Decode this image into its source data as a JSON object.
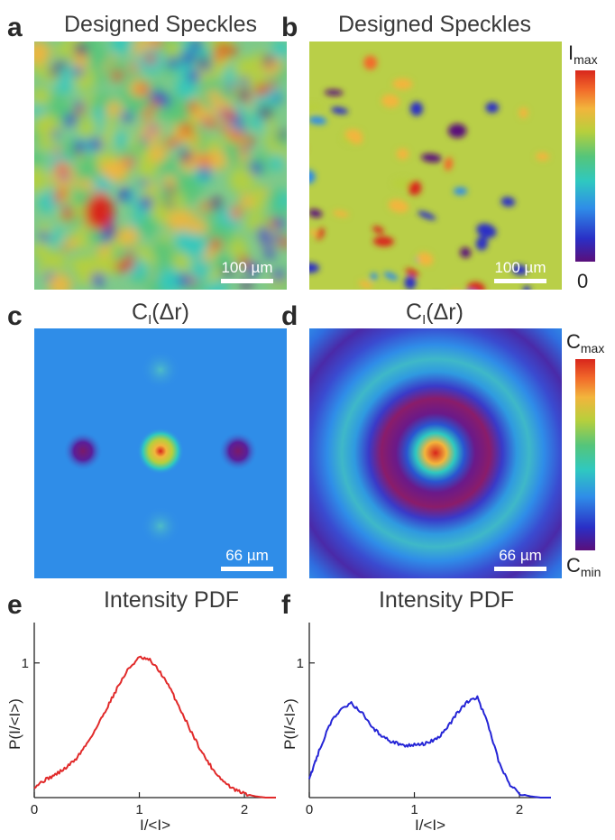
{
  "colors": {
    "jet": [
      "#5a0f7a",
      "#2a2fc6",
      "#2f8de8",
      "#2fc8c0",
      "#55c57a",
      "#b7cf3c",
      "#f2b53c",
      "#f26a2a",
      "#d8261c"
    ],
    "line_red": "#e12a2a",
    "line_blue": "#2525d6"
  },
  "panels": {
    "a": {
      "letter": "a",
      "title": "Designed Speckles",
      "scalebar": "100 µm"
    },
    "b": {
      "letter": "b",
      "title": "Designed Speckles",
      "scalebar": "100 µm"
    },
    "c": {
      "letter": "c",
      "title_main": "C",
      "title_sub": "I",
      "title_rest": "(Δr)",
      "scalebar": "66 µm"
    },
    "d": {
      "letter": "d",
      "title_main": "C",
      "title_sub": "I",
      "title_rest": "(Δr)",
      "scalebar": "66 µm"
    },
    "e": {
      "letter": "e",
      "title": "Intensity PDF"
    },
    "f": {
      "letter": "f",
      "title": "Intensity PDF"
    }
  },
  "colorbar_top": {
    "max_main": "I",
    "max_sub": "max",
    "min": "0"
  },
  "colorbar_mid": {
    "max_main": "C",
    "max_sub": "max",
    "min_main": "C",
    "min_sub": "min"
  },
  "chart_data": [
    {
      "panel": "e",
      "type": "line",
      "title": "Intensity PDF",
      "xlabel": "I/<I>",
      "ylabel": "P(I/<I>)",
      "xticks": [
        0,
        1,
        2
      ],
      "yticks": [
        1
      ],
      "xlim": [
        0,
        2.3
      ],
      "ylim": [
        0,
        1.3
      ],
      "series": [
        {
          "color": "red",
          "x": [
            0,
            0.1,
            0.2,
            0.3,
            0.4,
            0.5,
            0.6,
            0.7,
            0.8,
            0.9,
            1.0,
            1.1,
            1.2,
            1.3,
            1.4,
            1.5,
            1.6,
            1.7,
            1.8,
            1.9,
            2.0,
            2.1,
            2.2,
            2.3
          ],
          "y": [
            0.08,
            0.13,
            0.17,
            0.22,
            0.29,
            0.4,
            0.53,
            0.68,
            0.83,
            0.96,
            1.04,
            1.02,
            0.93,
            0.8,
            0.64,
            0.48,
            0.33,
            0.21,
            0.12,
            0.06,
            0.03,
            0.01,
            0.0,
            0.0
          ]
        }
      ]
    },
    {
      "panel": "f",
      "type": "line",
      "title": "Intensity PDF",
      "xlabel": "I/<I>",
      "ylabel": "P(I/<I>)",
      "xticks": [
        0,
        1,
        2
      ],
      "yticks": [
        1
      ],
      "xlim": [
        0,
        2.3
      ],
      "ylim": [
        0,
        1.3
      ],
      "series": [
        {
          "color": "blue",
          "x": [
            0,
            0.05,
            0.1,
            0.2,
            0.3,
            0.4,
            0.5,
            0.6,
            0.7,
            0.8,
            0.9,
            1.0,
            1.1,
            1.2,
            1.3,
            1.4,
            1.5,
            1.6,
            1.7,
            1.8,
            1.9,
            2.0,
            2.1,
            2.2,
            2.3
          ],
          "y": [
            0.15,
            0.25,
            0.36,
            0.55,
            0.66,
            0.7,
            0.63,
            0.52,
            0.45,
            0.41,
            0.39,
            0.39,
            0.4,
            0.43,
            0.5,
            0.62,
            0.71,
            0.74,
            0.55,
            0.28,
            0.1,
            0.03,
            0.01,
            0.0,
            0.0
          ]
        }
      ]
    }
  ]
}
